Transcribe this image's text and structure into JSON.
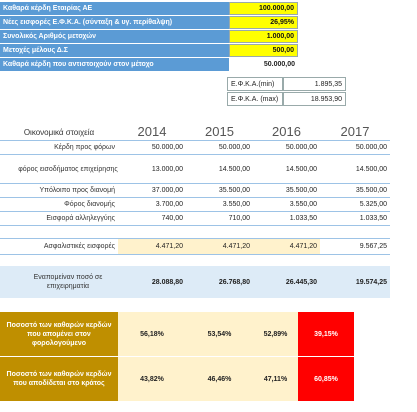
{
  "top": {
    "rows": [
      {
        "label": "Καθαρά κέρδη Εταιρίας ΑΕ",
        "value": "100.000,00"
      },
      {
        "label": "Νέες εισφορές Ε.Φ.Κ.Α. (σύνταξη & υγ. περίθαλψη)",
        "value": "26,95%"
      },
      {
        "label": "Συνολικός Αριθμός μετοχών",
        "value": "1.000,00"
      },
      {
        "label": "Μετοχές μέλους Δ.Σ",
        "value": "500,00"
      },
      {
        "label": "Καθαρά κέρδη που αντιστοιχούν στον μέτοχο",
        "value": "50.000,00"
      }
    ],
    "efka": [
      {
        "label": "Ε.Φ.Κ.Α.(min)",
        "value": "1.895,35"
      },
      {
        "label": "Ε.Φ.Κ.Α. (max)",
        "value": "18.953,90"
      }
    ]
  },
  "fin": {
    "header": "Οικονομικά στοιχεία",
    "years": [
      "2014",
      "2015",
      "2016",
      "2017"
    ],
    "rows": [
      {
        "label": "Κέρδη προς φόρων",
        "values": [
          "50.000,00",
          "50.000,00",
          "50.000,00",
          "50.000,00"
        ]
      },
      {
        "label": "φόρος εισοδήματος επιχείρησης",
        "values": [
          "13.000,00",
          "14.500,00",
          "14.500,00",
          "14.500,00"
        ]
      },
      {
        "label": "Υπόλοιπο προς διανομή",
        "values": [
          "37.000,00",
          "35.500,00",
          "35.500,00",
          "35.500,00"
        ]
      },
      {
        "label": "Φόρος διανομής",
        "values": [
          "3.700,00",
          "3.550,00",
          "3.550,00",
          "5.325,00"
        ]
      },
      {
        "label": "Εισφορά αλληλεγγύης",
        "values": [
          "740,00",
          "710,00",
          "1.033,50",
          "1.033,50"
        ]
      }
    ]
  },
  "insurance": {
    "label": "Ασφαλιστικές εισφορές",
    "values": [
      "4.471,20",
      "4.471,20",
      "4.471,20",
      "9.567,25"
    ]
  },
  "remaining": {
    "label": "Εναπομείναν ποσό σε επιχειρηματία",
    "values": [
      "28.088,80",
      "26.768,80",
      "26.445,30",
      "19.574,25"
    ]
  },
  "pct_owner": {
    "label": "Ποσοστό των καθαρών κερδών που απομένει στον φορολογούμενο",
    "values": [
      "56,18%",
      "53,54%",
      "52,89%",
      "39,15%"
    ]
  },
  "pct_state": {
    "label": "Ποσοστό των καθαρών κερδών που αποδίδεται στο κράτος",
    "values": [
      "43,82%",
      "46,46%",
      "47,11%",
      "60,85%"
    ]
  },
  "colors": {
    "blue": "#5b9bd5",
    "yellow": "#ffff00",
    "gold": "#bf8f00",
    "red": "#ff0000",
    "cream": "#fff2cc",
    "lightblue": "#ddebf7"
  }
}
